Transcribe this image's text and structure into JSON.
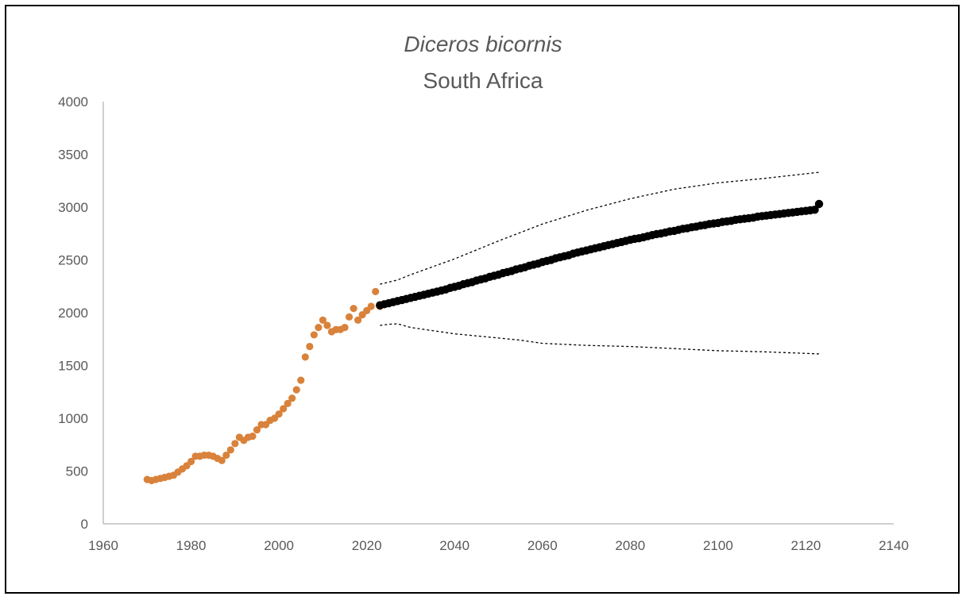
{
  "chart_data": {
    "type": "scatter",
    "title": "Diceros bicornis",
    "subtitle": "South Africa",
    "xlabel": "",
    "ylabel": "",
    "xlim": [
      1960,
      2140
    ],
    "ylim": [
      0,
      4000
    ],
    "xticks": [
      1960,
      1980,
      2000,
      2020,
      2040,
      2060,
      2080,
      2100,
      2120,
      2140
    ],
    "yticks": [
      0,
      500,
      1000,
      1500,
      2000,
      2500,
      3000,
      3500,
      4000
    ],
    "grid": false,
    "legend": "none",
    "colors": {
      "observed": "#D9823B",
      "projected": "#000000",
      "bounds": "#000000",
      "axis": "#BFBFBF",
      "text": "#595959"
    },
    "series": [
      {
        "marker": "dot",
        "x": [
          1970,
          1971,
          1972,
          1973,
          1974,
          1975,
          1976,
          1977,
          1978,
          1979,
          1980,
          1981,
          1982,
          1983,
          1984,
          1985,
          1986,
          1987,
          1988,
          1989,
          1990,
          1991,
          1992,
          1993,
          1994,
          1995,
          1996,
          1997,
          1998,
          1999,
          2000,
          2001,
          2002,
          2003,
          2004,
          2005,
          2006,
          2007,
          2008,
          2009,
          2010,
          2011,
          2012,
          2013,
          2014,
          2015,
          2016,
          2017,
          2018,
          2019,
          2020,
          2021,
          2022,
          2023
        ],
        "y": [
          420,
          410,
          420,
          430,
          440,
          450,
          460,
          490,
          520,
          550,
          590,
          640,
          640,
          650,
          650,
          640,
          620,
          600,
          650,
          700,
          760,
          820,
          790,
          820,
          830,
          890,
          940,
          940,
          980,
          1000,
          1040,
          1090,
          1140,
          1190,
          1270,
          1360,
          1580,
          1680,
          1790,
          1860,
          1930,
          1880,
          1820,
          1840,
          1840,
          1860,
          1960,
          2040,
          1930,
          1980,
          2020,
          2060,
          2200,
          2060
        ]
      },
      {
        "marker": "dot-large",
        "x_range": [
          2023,
          2123
        ],
        "y": [
          2070,
          2080,
          2090,
          2100,
          2110,
          2120,
          2130,
          2140,
          2150,
          2160,
          2170,
          2180,
          2190,
          2200,
          2210,
          2220,
          2235,
          2245,
          2255,
          2270,
          2280,
          2290,
          2305,
          2315,
          2325,
          2340,
          2350,
          2360,
          2375,
          2385,
          2395,
          2410,
          2420,
          2430,
          2445,
          2455,
          2465,
          2480,
          2490,
          2500,
          2515,
          2525,
          2535,
          2545,
          2560,
          2570,
          2580,
          2590,
          2600,
          2610,
          2620,
          2630,
          2640,
          2650,
          2660,
          2670,
          2680,
          2690,
          2700,
          2705,
          2715,
          2725,
          2735,
          2745,
          2750,
          2760,
          2770,
          2775,
          2785,
          2795,
          2800,
          2810,
          2815,
          2825,
          2830,
          2840,
          2845,
          2850,
          2860,
          2865,
          2870,
          2880,
          2885,
          2890,
          2895,
          2900,
          2910,
          2915,
          2920,
          2925,
          2930,
          2935,
          2940,
          2945,
          2950,
          2955,
          2960,
          2965,
          2970,
          2975,
          3030
        ]
      },
      {
        "line": "dashed",
        "x": [
          2023,
          2027,
          2030,
          2040,
          2050,
          2060,
          2070,
          2080,
          2090,
          2100,
          2110,
          2123
        ],
        "y": [
          2270,
          2310,
          2360,
          2510,
          2680,
          2840,
          2970,
          3080,
          3170,
          3230,
          3270,
          3330
        ]
      },
      {
        "line": "dashed",
        "x": [
          2023,
          2025,
          2027,
          2030,
          2035,
          2040,
          2050,
          2055,
          2060,
          2070,
          2080,
          2090,
          2100,
          2110,
          2123
        ],
        "y": [
          1880,
          1890,
          1895,
          1860,
          1830,
          1800,
          1760,
          1740,
          1710,
          1690,
          1680,
          1660,
          1640,
          1630,
          1610
        ]
      }
    ]
  }
}
